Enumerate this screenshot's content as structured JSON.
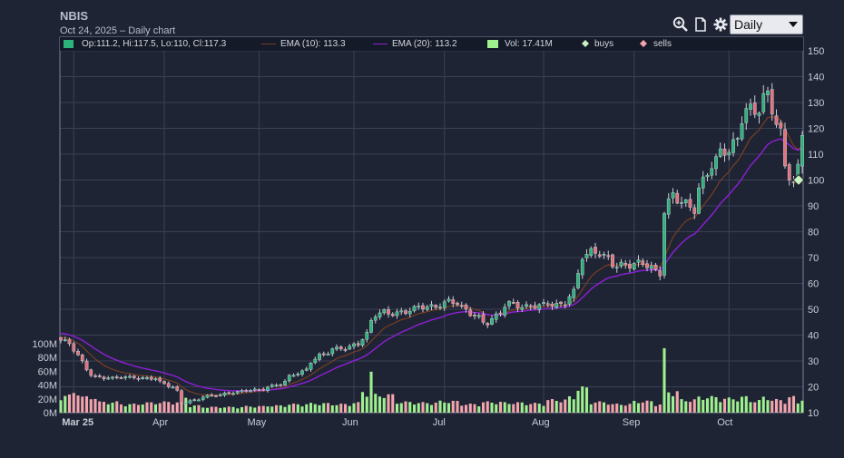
{
  "header": {
    "title": "NBIS",
    "subtitle": "Oct 24, 2025 – Daily chart"
  },
  "toolbar": {
    "icons": [
      "zoom-icon",
      "document-icon",
      "gear-icon"
    ],
    "period": "Daily"
  },
  "legend": {
    "ohlc": "Op:111.2, Hi:117.5, Lo:110, Cl:117.3",
    "ema10": "EMA (10): 113.3",
    "ema20": "EMA (20): 113.2",
    "vol": "Vol: 17.41M",
    "buys": "buys",
    "sells": "sells"
  },
  "colors": {
    "background": "#1f2435",
    "up": "#2db37a",
    "down": "#e0737e",
    "ema10": "#7a3d22",
    "ema20": "#8d1fd6",
    "vol_up": "#9ff08f",
    "vol_down": "#f3a5ad",
    "buys": "#c8f0c0",
    "sells": "#f3a5ad"
  },
  "chart_data": {
    "type": "candlestick",
    "symbol": "NBIS",
    "price_axis": {
      "min": 10,
      "max": 150,
      "ticks": [
        10,
        20,
        30,
        40,
        50,
        60,
        70,
        80,
        90,
        100,
        110,
        120,
        130,
        140,
        150
      ]
    },
    "volume_axis": {
      "min": 0,
      "max": 100,
      "unit": "M",
      "ticks": [
        "0M",
        "20M",
        "40M",
        "60M",
        "80M",
        "100M"
      ]
    },
    "x_labels": [
      "Mar 25",
      "Apr",
      "May",
      "Jun",
      "Jul",
      "Aug",
      "Sep",
      "Oct"
    ],
    "start_date": "2025-02-26",
    "anchors": [
      [
        "2025-02-26",
        38,
        24
      ],
      [
        "2025-03-03",
        34,
        30
      ],
      [
        "2025-03-07",
        25,
        22
      ],
      [
        "2025-03-14",
        23,
        15
      ],
      [
        "2025-03-21",
        24,
        12
      ],
      [
        "2025-03-28",
        23,
        14
      ],
      [
        "2025-04-03",
        20,
        15
      ],
      [
        "2025-04-07",
        14,
        22
      ],
      [
        "2025-04-11",
        15,
        10
      ],
      [
        "2025-04-17",
        17,
        8
      ],
      [
        "2025-04-25",
        18,
        8
      ],
      [
        "2025-05-01",
        19,
        9
      ],
      [
        "2025-05-08",
        21,
        10
      ],
      [
        "2025-05-15",
        26,
        12
      ],
      [
        "2025-05-21",
        32,
        13
      ],
      [
        "2025-05-28",
        35,
        12
      ],
      [
        "2025-06-03",
        37,
        14
      ],
      [
        "2025-06-05",
        40,
        30
      ],
      [
        "2025-06-06",
        45,
        58
      ],
      [
        "2025-06-11",
        49,
        25
      ],
      [
        "2025-06-18",
        49,
        15
      ],
      [
        "2025-06-25",
        51,
        14
      ],
      [
        "2025-07-02",
        53,
        16
      ],
      [
        "2025-07-10",
        48,
        12
      ],
      [
        "2025-07-15",
        45,
        15
      ],
      [
        "2025-07-22",
        52,
        14
      ],
      [
        "2025-08-01",
        51,
        13
      ],
      [
        "2025-08-07",
        52,
        18
      ],
      [
        "2025-08-12",
        57,
        22
      ],
      [
        "2025-08-14",
        70,
        35
      ],
      [
        "2025-08-20",
        72,
        15
      ],
      [
        "2025-08-28",
        66,
        12
      ],
      [
        "2025-09-04",
        68,
        16
      ],
      [
        "2025-09-09",
        64,
        12
      ],
      [
        "2025-09-10",
        88,
        85
      ],
      [
        "2025-09-12",
        93,
        30
      ],
      [
        "2025-09-19",
        90,
        18
      ],
      [
        "2025-09-25",
        105,
        22
      ],
      [
        "2025-10-01",
        112,
        20
      ],
      [
        "2025-10-07",
        128,
        22
      ],
      [
        "2025-10-09",
        125,
        17
      ],
      [
        "2025-10-14",
        132,
        22
      ],
      [
        "2025-10-16",
        124,
        18
      ],
      [
        "2025-10-20",
        106,
        17
      ],
      [
        "2025-10-22",
        99,
        22
      ],
      [
        "2025-10-23",
        103,
        14
      ],
      [
        "2025-10-24",
        117.3,
        17.41
      ]
    ],
    "ema10_last": 113.3,
    "ema20_last": 113.2,
    "trade_markers": [
      {
        "date": "2025-10-24",
        "price": 100,
        "type": "buy"
      }
    ]
  }
}
